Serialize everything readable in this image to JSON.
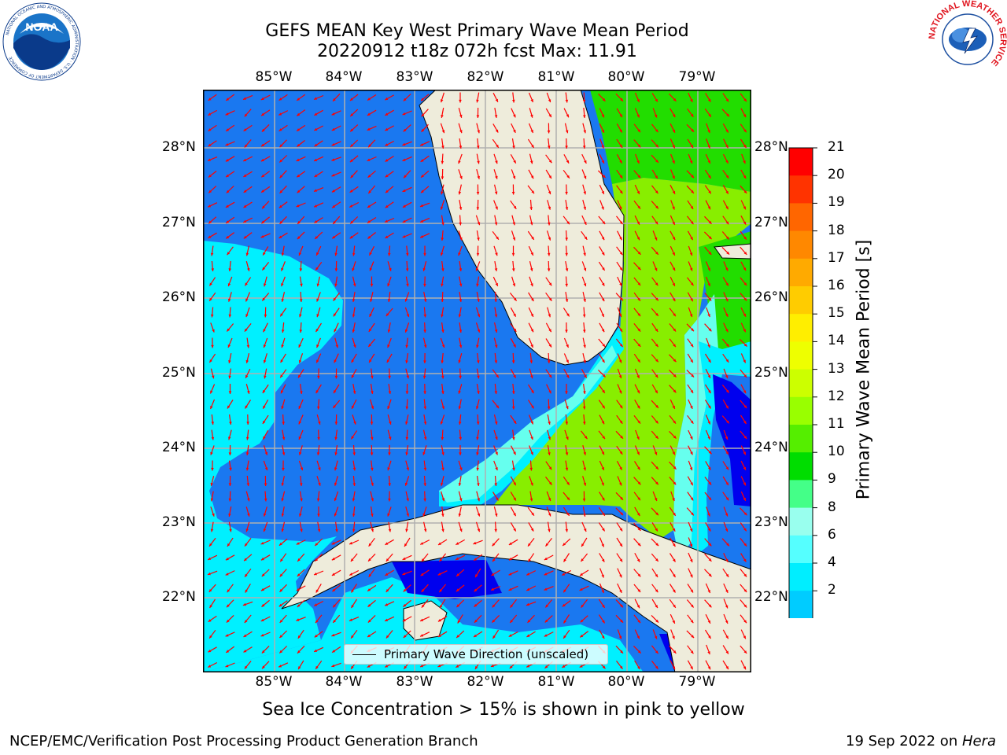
{
  "title": {
    "line1": "GEFS MEAN Key West Primary Wave Mean Period",
    "line2": "20220912 t18z 072h fcst   Max: 11.91"
  },
  "map": {
    "lon_labels": [
      "85°W",
      "84°W",
      "83°W",
      "82°W",
      "81°W",
      "80°W",
      "79°W"
    ],
    "lat_labels": [
      "28°N",
      "27°N",
      "26°N",
      "25°N",
      "24°N",
      "23°N",
      "22°N"
    ],
    "legend_label": "Primary Wave Direction (unscaled)",
    "land_color": "#eeecdb",
    "arrow_color": "#ff0000"
  },
  "colorbar": {
    "label": "Primary Wave Mean Period [s]",
    "ticks": [
      "21",
      "20",
      "19",
      "18",
      "17",
      "16",
      "15",
      "14",
      "13",
      "12",
      "11",
      "10",
      "9",
      "8",
      "6",
      "4",
      "2"
    ],
    "colors": [
      "#ff0000",
      "#ff3300",
      "#ff6600",
      "#ff8800",
      "#ffaa00",
      "#ffcc00",
      "#ffee00",
      "#eeff00",
      "#ccff00",
      "#99ff00",
      "#55ee00",
      "#00dd00",
      "#44ff88",
      "#99ffee",
      "#55ffff",
      "#00eeff",
      "#00ccff",
      "#0077ff"
    ],
    "under_color": "#0000ff"
  },
  "subnote": "Sea Ice Concentration > 15% is shown in pink to yellow",
  "footer": {
    "left": "NCEP/EMC/Verification Post Processing Product Generation Branch",
    "right_date": "19 Sep 2022 on ",
    "right_host": "Hera"
  },
  "logos": {
    "noaa_text": "NOAA",
    "noaa_ring": "NATIONAL OCEANIC AND ATMOSPHERIC ADMINISTRATION · U.S. DEPARTMENT OF COMMERCE",
    "nws_ring": "NATIONAL WEATHER SERVICE"
  }
}
